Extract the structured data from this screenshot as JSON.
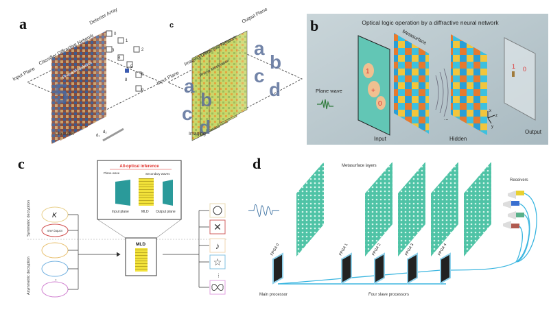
{
  "panel_a": {
    "label": "a",
    "texts": {
      "input_plane": "Input Plane",
      "network": "Classifier Diffractive Network",
      "detector": "Detector Array",
      "phase": "Phase Modulation",
      "caption": "Classifier",
      "d1": "d₁",
      "d2": "d₂"
    },
    "detector_digits": [
      "0",
      "1",
      "2",
      "3",
      "4",
      "5",
      "6",
      "7",
      "8",
      "9"
    ]
  },
  "panel_a_c": {
    "label": "c",
    "texts": {
      "input_plane": "Input Plane",
      "network": "Imaging Diffractive Network",
      "output_plane": "Output Plane",
      "phase": "Phase Modulation",
      "caption": "Imaging"
    },
    "letters": [
      "a",
      "b",
      "c",
      "d"
    ]
  },
  "panel_b": {
    "label": "b",
    "title": "Optical logic operation by a diffractive neural network",
    "plane_wave": "Plane wave",
    "input": "Input",
    "metasurface": "Metasurface",
    "hidden": "Hidden",
    "output": "Output",
    "dots": "...",
    "input_values": [
      "1",
      "+",
      "0"
    ],
    "output_values": [
      "1",
      "0"
    ],
    "axes": [
      "x",
      "z",
      "y"
    ],
    "bg_color": "#b9c7cd"
  },
  "panel_c": {
    "label": "c",
    "inset_title": "All-optical inference",
    "plane_wave": "Plane wave",
    "secondary": "Secondary waves",
    "input_plane": "Input plane",
    "mld": "MLD",
    "output_plane": "Output plane",
    "mld_box": "MLD",
    "symmetric": "Symmetric decryption",
    "asymmetric": "Asymmetric decryption",
    "key_symbol": "K",
    "cipher": "rtrer laqucs",
    "vdots": "⋮",
    "outputs": [
      "smiley-icon",
      "cross-icon",
      "music-note-icon",
      "star-icon",
      "butterfly-icon"
    ],
    "accent_color": "#e0302a"
  },
  "panel_d": {
    "label": "d",
    "metasurface_layers": "Metasurface layers",
    "receivers": "Receivers",
    "fpgas": [
      "FPGA 0",
      "FPGA 1",
      "FPGA 2",
      "FPGA 3",
      "FPGA 4"
    ],
    "main_processor": "Main processor",
    "slave_processors": "Four slave processors",
    "layer_color": "#5ed0b0",
    "cable_color": "#3bb6e0"
  }
}
